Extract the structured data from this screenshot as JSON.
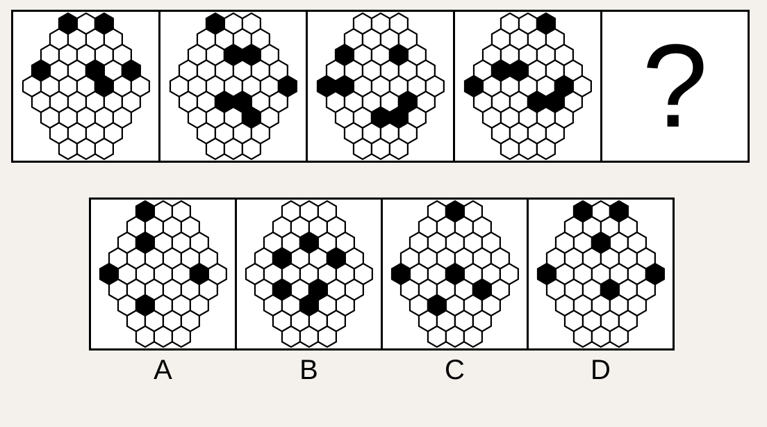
{
  "puzzle": {
    "type": "hexagon-pattern-sequence",
    "background_color": "#f4f1ec",
    "cell_bg": "#ffffff",
    "border_color": "#000000",
    "border_width": 3,
    "hex": {
      "radius": 15,
      "stroke_color": "#000000",
      "stroke_width": 2.2,
      "fill_empty": "#ffffff",
      "fill_black": "#000000",
      "rows": [
        3,
        4,
        5,
        6,
        7,
        6,
        5,
        4,
        3
      ]
    },
    "question_mark": "?",
    "option_labels": [
      "A",
      "B",
      "C",
      "D"
    ],
    "label_fontsize": 40,
    "qmark_fontsize": 170,
    "sequence": [
      {
        "filled": [
          [
            0,
            0
          ],
          [
            0,
            2
          ],
          [
            3,
            0
          ],
          [
            3,
            3
          ],
          [
            3,
            5
          ],
          [
            4,
            4
          ]
        ]
      },
      {
        "filled": [
          [
            0,
            0
          ],
          [
            2,
            2
          ],
          [
            2,
            3
          ],
          [
            4,
            6
          ],
          [
            5,
            2
          ],
          [
            5,
            3
          ],
          [
            6,
            3
          ]
        ]
      },
      {
        "filled": [
          [
            2,
            0
          ],
          [
            2,
            3
          ],
          [
            4,
            0
          ],
          [
            4,
            1
          ],
          [
            5,
            4
          ],
          [
            6,
            2
          ],
          [
            6,
            3
          ]
        ]
      },
      {
        "filled": [
          [
            0,
            2
          ],
          [
            3,
            1
          ],
          [
            3,
            2
          ],
          [
            4,
            0
          ],
          [
            4,
            5
          ],
          [
            5,
            3
          ],
          [
            5,
            4
          ]
        ]
      },
      {
        "question": true
      }
    ],
    "options": [
      {
        "label": "A",
        "filled": [
          [
            0,
            0
          ],
          [
            2,
            1
          ],
          [
            4,
            0
          ],
          [
            4,
            5
          ],
          [
            6,
            1
          ]
        ]
      },
      {
        "label": "B",
        "filled": [
          [
            2,
            2
          ],
          [
            3,
            1
          ],
          [
            3,
            4
          ],
          [
            5,
            1
          ],
          [
            5,
            3
          ],
          [
            6,
            2
          ]
        ]
      },
      {
        "label": "C",
        "filled": [
          [
            0,
            1
          ],
          [
            4,
            0
          ],
          [
            4,
            3
          ],
          [
            5,
            4
          ],
          [
            6,
            1
          ]
        ]
      },
      {
        "label": "D",
        "filled": [
          [
            0,
            0
          ],
          [
            0,
            2
          ],
          [
            2,
            2
          ],
          [
            4,
            0
          ],
          [
            4,
            6
          ],
          [
            5,
            3
          ]
        ]
      }
    ]
  }
}
